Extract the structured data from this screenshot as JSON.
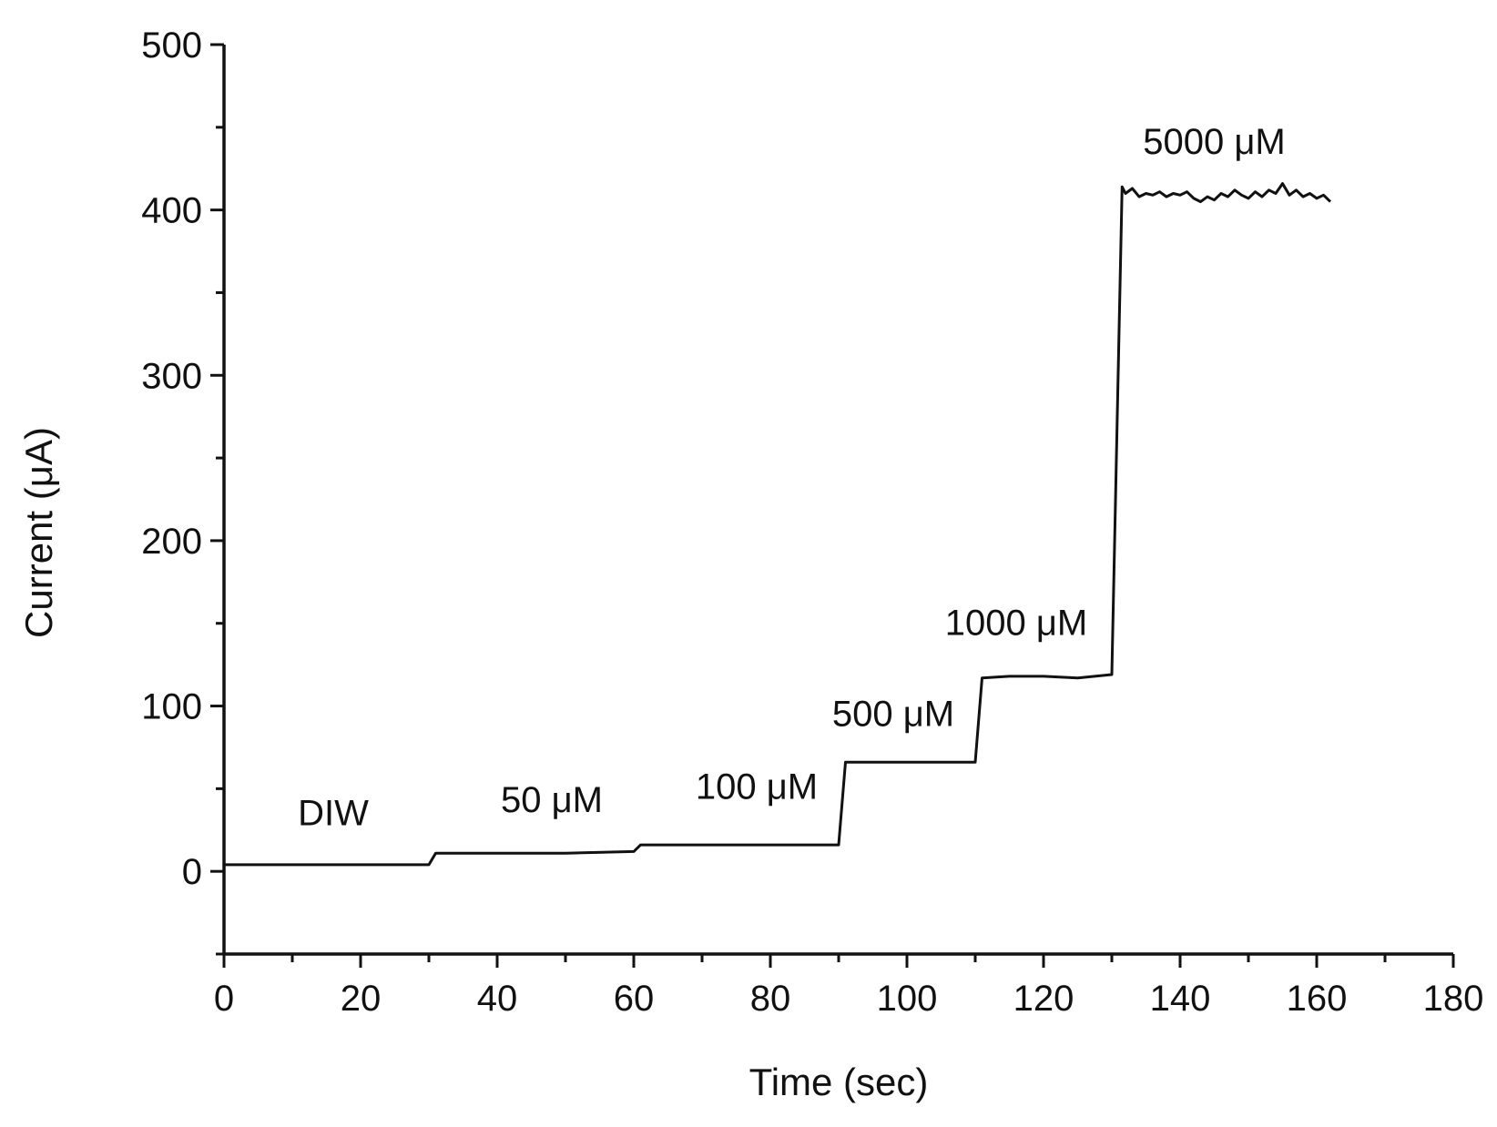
{
  "chart_data": {
    "type": "line",
    "title": "",
    "xlabel": "Time (sec)",
    "ylabel": "Current (μA)",
    "xlim": [
      0,
      180
    ],
    "ylim": [
      -50,
      500
    ],
    "xticks": [
      0,
      20,
      40,
      60,
      80,
      100,
      120,
      140,
      160,
      180
    ],
    "yticks": [
      0,
      100,
      200,
      300,
      400,
      500
    ],
    "xminor_step": 10,
    "yminor_step": 50,
    "grid": false,
    "legend": "none",
    "line_color": "#111111",
    "series": [
      {
        "x": [
          0,
          30,
          31,
          40,
          50,
          60,
          61,
          70,
          80,
          90,
          91,
          100,
          110,
          111,
          115,
          120,
          125,
          130,
          131.5,
          132,
          133,
          134,
          135,
          136,
          137,
          138,
          139,
          140,
          141,
          142,
          143,
          144,
          145,
          146,
          147,
          148,
          149,
          150,
          151,
          152,
          153,
          154,
          155,
          156,
          157,
          158,
          159,
          160,
          161,
          162
        ],
        "y": [
          4,
          4,
          11,
          11,
          11,
          12,
          16,
          16,
          16,
          16,
          66,
          66,
          66,
          117,
          118,
          118,
          117,
          119,
          414,
          410,
          413,
          408,
          410,
          409,
          411,
          408,
          410,
          409,
          411,
          407,
          405,
          408,
          406,
          410,
          408,
          412,
          409,
          407,
          411,
          408,
          412,
          410,
          416,
          409,
          412,
          408,
          410,
          407,
          409,
          405
        ]
      }
    ],
    "annotations": [
      {
        "text": "DIW",
        "x": 16,
        "y": 28
      },
      {
        "text": "50 μM",
        "x": 48,
        "y": 36
      },
      {
        "text": "100 μM",
        "x": 78,
        "y": 44
      },
      {
        "text": "500 μM",
        "x": 98,
        "y": 88
      },
      {
        "text": "1000 μM",
        "x": 116,
        "y": 143
      },
      {
        "text": "5000 μM",
        "x": 145,
        "y": 434
      }
    ]
  }
}
